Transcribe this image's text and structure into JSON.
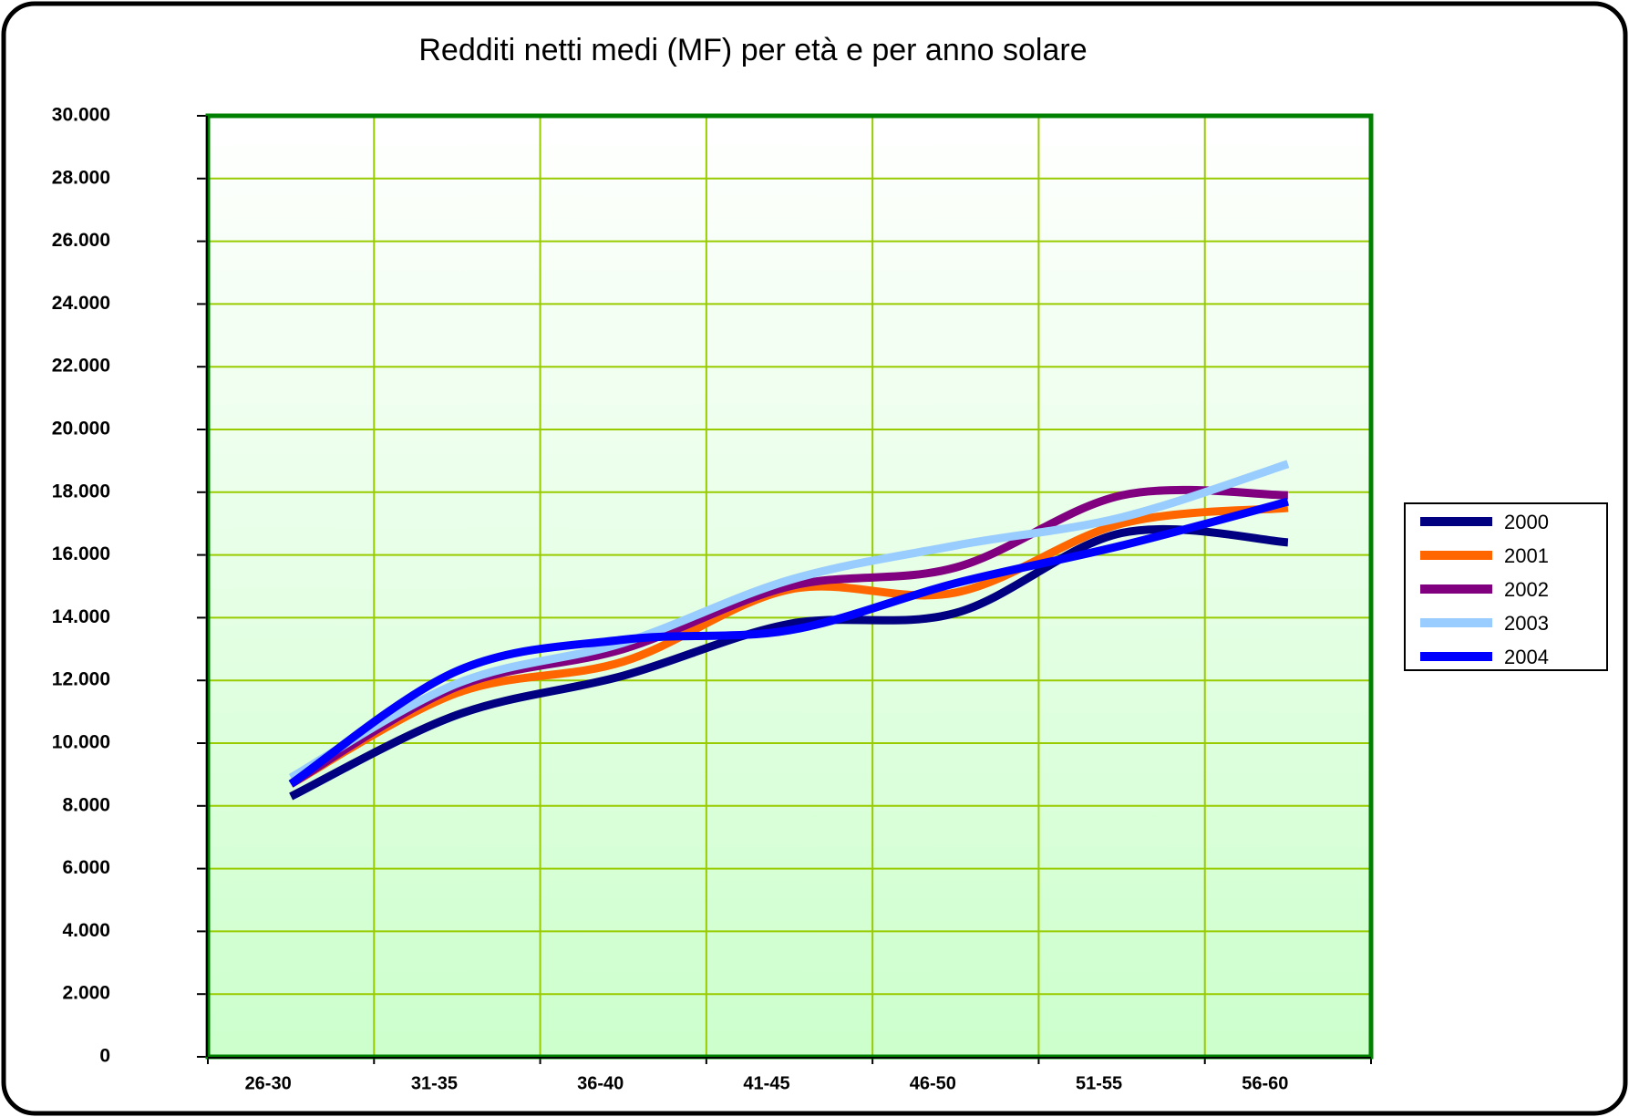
{
  "chart_data": {
    "type": "line",
    "title": "Redditi netti medi (MF) per età e per anno solare",
    "categories": [
      "26-30",
      "31-35",
      "36-40",
      "41-45",
      "46-50",
      "51-55",
      "56-60"
    ],
    "series": [
      {
        "name": "2000",
        "color": "#000080",
        "values": [
          8300,
          10900,
          12150,
          13800,
          14150,
          16700,
          16400
        ]
      },
      {
        "name": "2001",
        "color": "#ff6600",
        "values": [
          8700,
          11600,
          12600,
          14900,
          14800,
          17000,
          17500
        ]
      },
      {
        "name": "2002",
        "color": "#800080",
        "values": [
          8700,
          11800,
          13000,
          15000,
          15600,
          17900,
          17900
        ]
      },
      {
        "name": "2003",
        "color": "#99ccff",
        "values": [
          8900,
          11900,
          13200,
          15200,
          16300,
          17200,
          18900
        ]
      },
      {
        "name": "2004",
        "color": "#0000ff",
        "values": [
          8700,
          12300,
          13300,
          13600,
          15100,
          16300,
          17700
        ]
      }
    ],
    "ylim": [
      0,
      30000
    ],
    "yticks": [
      0,
      {
        "value": 2000,
        "label": "2.000"
      },
      {
        "value": 4000,
        "label": "4.000"
      },
      {
        "value": 6000,
        "label": "6.000"
      },
      {
        "value": 8000,
        "label": "8.000"
      },
      {
        "value": 10000,
        "label": "10.000"
      },
      {
        "value": 12000,
        "label": "12.000"
      },
      {
        "value": 14000,
        "label": "14.000"
      },
      {
        "value": 16000,
        "label": "16.000"
      },
      {
        "value": 18000,
        "label": "18.000"
      },
      {
        "value": 20000,
        "label": "20.000"
      },
      {
        "value": 22000,
        "label": "22.000"
      },
      {
        "value": 24000,
        "label": "24.000"
      },
      {
        "value": 26000,
        "label": "26.000"
      },
      {
        "value": 28000,
        "label": "28.000"
      },
      {
        "value": 30000,
        "label": "30.000"
      }
    ],
    "grid": true,
    "legend": "right"
  }
}
